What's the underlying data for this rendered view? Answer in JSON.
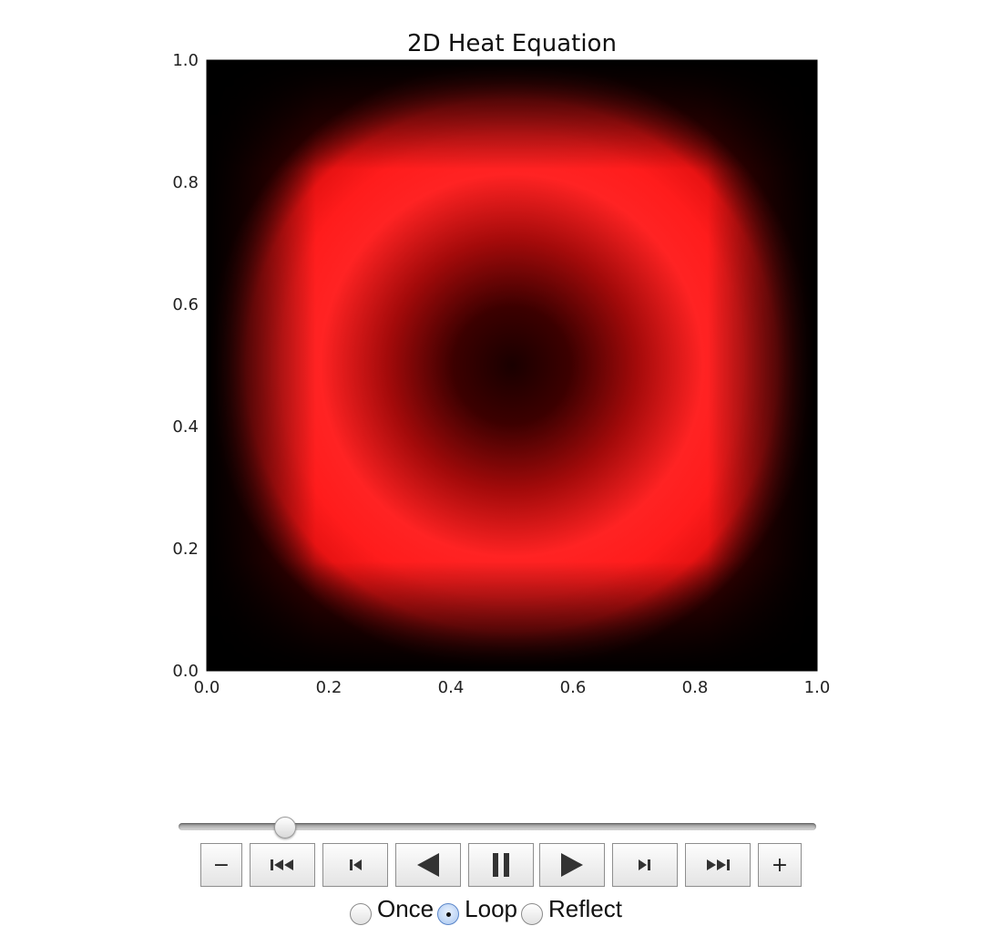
{
  "chart_data": {
    "type": "heatmap",
    "title": "2D Heat Equation",
    "xlabel": "",
    "ylabel": "",
    "xlim": [
      0.0,
      1.0
    ],
    "ylim": [
      0.0,
      1.0
    ],
    "x_ticks": [
      "0.0",
      "0.2",
      "0.4",
      "0.6",
      "0.8",
      "1.0"
    ],
    "y_ticks": [
      "0.0",
      "0.2",
      "0.4",
      "0.6",
      "0.8",
      "1.0"
    ],
    "colormap": "hot",
    "colors": {
      "low": "#000000",
      "high": "#ff2222"
    },
    "grid": false,
    "field": "ring-shaped temperature distribution centered at (0.5, 0.5), cold center and cold boundaries"
  },
  "player": {
    "slider_fraction": 0.167,
    "buttons": [
      {
        "name": "decrease-speed-button",
        "icon": "minus-icon",
        "glyph": "−"
      },
      {
        "name": "first-frame-button",
        "icon": "skip-to-first-icon"
      },
      {
        "name": "previous-frame-button",
        "icon": "step-back-icon"
      },
      {
        "name": "play-reverse-button",
        "icon": "play-reverse-icon"
      },
      {
        "name": "pause-button",
        "icon": "pause-icon"
      },
      {
        "name": "play-button",
        "icon": "play-icon"
      },
      {
        "name": "next-frame-button",
        "icon": "step-forward-icon"
      },
      {
        "name": "last-frame-button",
        "icon": "skip-to-last-icon"
      },
      {
        "name": "increase-speed-button",
        "icon": "plus-icon",
        "glyph": "+"
      }
    ],
    "modes": [
      {
        "label": "Once",
        "selected": false
      },
      {
        "label": "Loop",
        "selected": true
      },
      {
        "label": "Reflect",
        "selected": false
      }
    ]
  }
}
